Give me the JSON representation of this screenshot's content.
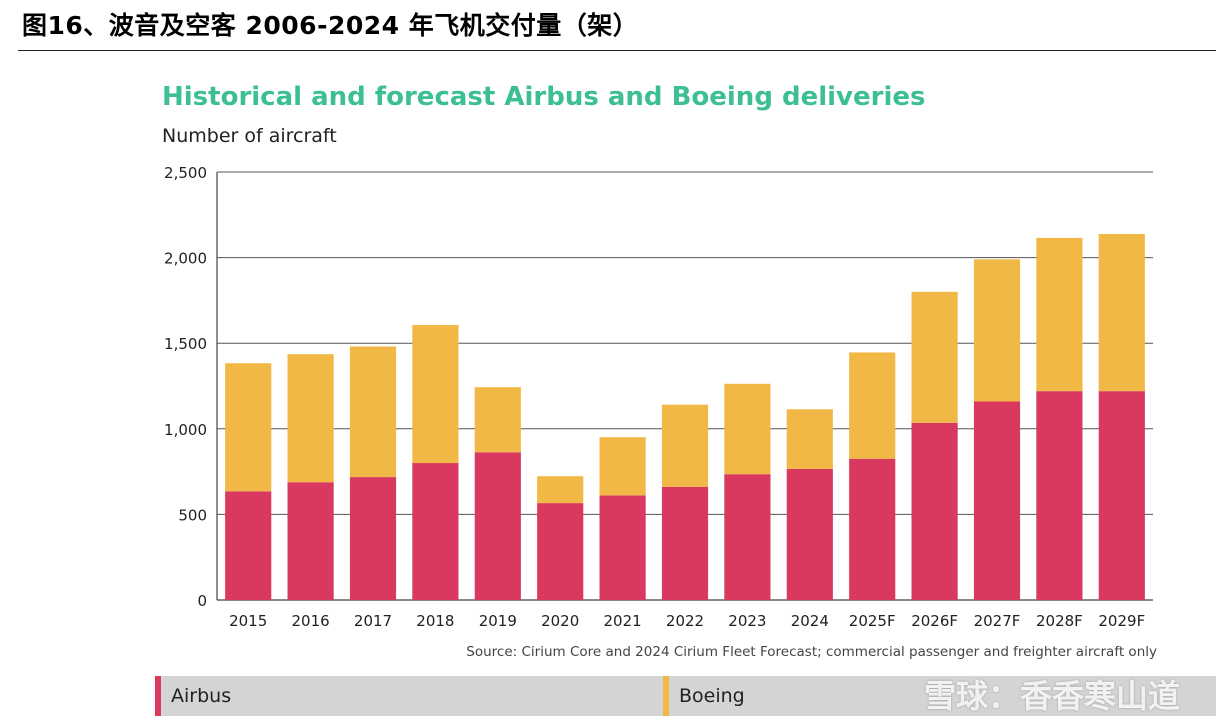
{
  "caption": "图16、波音及空客 2006-2024 年飞机交付量（架）",
  "chart_data": {
    "type": "bar",
    "stacked": true,
    "title": "Historical and forecast Airbus and Boeing deliveries",
    "ylabel": "Number of aircraft",
    "xlabel": "",
    "categories": [
      "2015",
      "2016",
      "2017",
      "2018",
      "2019",
      "2020",
      "2021",
      "2022",
      "2023",
      "2024",
      "2025F",
      "2026F",
      "2027F",
      "2028F",
      "2029F"
    ],
    "series": [
      {
        "name": "Airbus",
        "color": "#d9395f",
        "values": [
          635,
          688,
          718,
          800,
          863,
          566,
          611,
          661,
          735,
          766,
          825,
          1035,
          1160,
          1220,
          1220
        ]
      },
      {
        "name": "Boeing",
        "color": "#f2b846",
        "values": [
          748,
          748,
          763,
          806,
          380,
          157,
          340,
          480,
          528,
          348,
          621,
          765,
          830,
          895,
          918
        ]
      }
    ],
    "ylim": [
      0,
      2500
    ],
    "yticks": [
      0,
      500,
      1000,
      1500,
      2000,
      2500
    ],
    "ytick_labels": [
      "0",
      "500",
      "1,000",
      "1,500",
      "2,000",
      "2,500"
    ],
    "grid": true,
    "source": "Source: Cirium Core and 2024 Cirium Fleet Forecast; commercial passenger and freighter aircraft only"
  },
  "watermark": "雪球：香香寒山道"
}
